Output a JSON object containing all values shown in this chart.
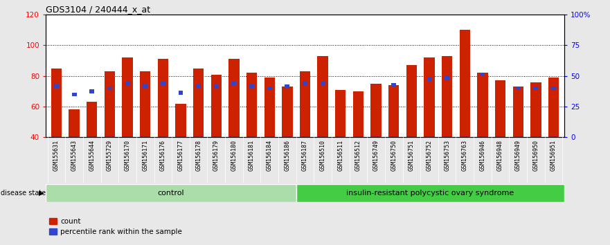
{
  "title": "GDS3104 / 240444_x_at",
  "samples": [
    "GSM155631",
    "GSM155643",
    "GSM155644",
    "GSM155729",
    "GSM156170",
    "GSM156171",
    "GSM156176",
    "GSM156177",
    "GSM156178",
    "GSM156179",
    "GSM156180",
    "GSM156181",
    "GSM156184",
    "GSM156186",
    "GSM156187",
    "GSM156510",
    "GSM156511",
    "GSM156512",
    "GSM156749",
    "GSM156750",
    "GSM156751",
    "GSM156752",
    "GSM156753",
    "GSM156763",
    "GSM156946",
    "GSM156948",
    "GSM156949",
    "GSM156950",
    "GSM156951"
  ],
  "red_values": [
    85,
    58,
    63,
    83,
    92,
    83,
    91,
    62,
    85,
    81,
    91,
    82,
    79,
    73,
    83,
    93,
    71,
    70,
    75,
    74,
    87,
    92,
    93,
    110,
    82,
    77,
    73,
    76,
    79
  ],
  "blue_values": [
    73,
    68,
    70,
    72,
    75,
    73,
    75,
    69,
    73,
    73,
    75,
    73,
    72,
    73,
    75,
    75,
    0,
    0,
    0,
    74,
    0,
    78,
    79,
    0,
    81,
    0,
    72,
    72,
    72
  ],
  "group_sizes": [
    14,
    15
  ],
  "control_label": "control",
  "disease_label": "insulin-resistant polycystic ovary syndrome",
  "control_color": "#aaddaa",
  "disease_color": "#44cc44",
  "bar_color_red": "#CC2200",
  "bar_color_blue": "#3344CC",
  "ylim_left": [
    40,
    120
  ],
  "yticks_left": [
    40,
    60,
    80,
    100,
    120
  ],
  "ylim_right": [
    0,
    100
  ],
  "yticks_right": [
    0,
    25,
    50,
    75,
    100
  ],
  "ytick_labels_right": [
    "0",
    "25",
    "50",
    "75",
    "100%"
  ],
  "background_color": "#e8e8e8",
  "plot_bg": "#ffffff",
  "xtick_bg": "#cccccc"
}
